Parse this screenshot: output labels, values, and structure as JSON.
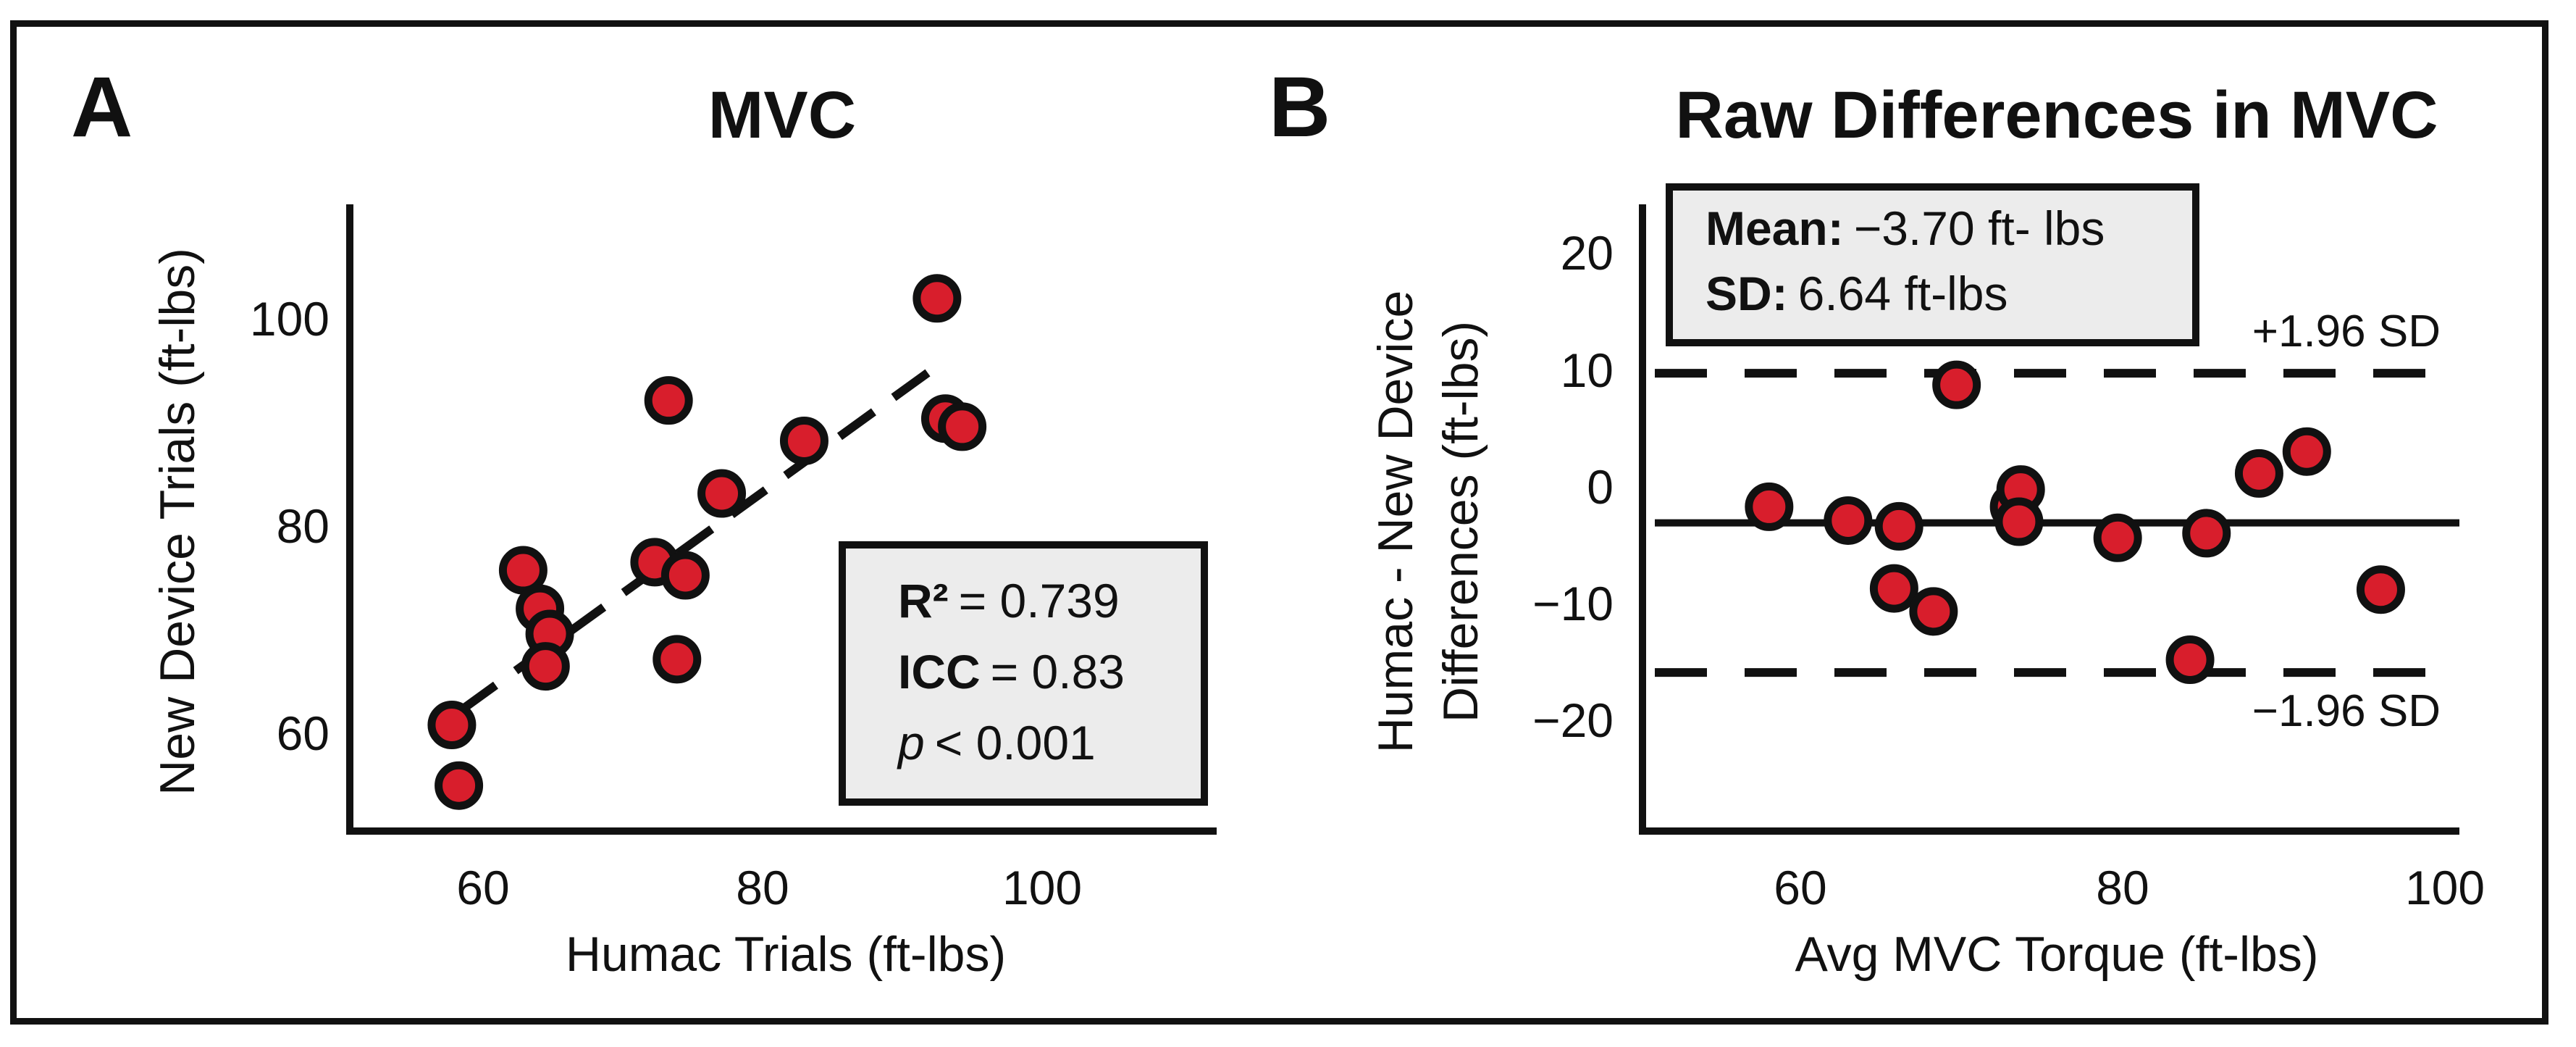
{
  "colors": {
    "point_fill": "#d81e2c",
    "point_stroke": "#111111",
    "box_fill": "#ececec",
    "ink": "#111111"
  },
  "panels": {
    "a": {
      "letter": "A",
      "stats": {
        "r2_label": "R²",
        "r2_value": "= 0.739",
        "icc_label": "ICC",
        "icc_value": "= 0.83",
        "p_label": "p",
        "p_value": "< 0.001"
      }
    },
    "b": {
      "letter": "B",
      "stats": {
        "mean_label": "Mean:",
        "mean_value": "−3.70 ft- lbs",
        "sd_label": "SD:",
        "sd_value": "6.64 ft-lbs"
      },
      "upper_label": "+1.96 SD",
      "lower_label": "−1.96 SD"
    }
  },
  "chart_data": [
    {
      "type": "scatter",
      "title": "MVC",
      "xlabel": "Humac Trials (ft-lbs)",
      "ylabel": "New Device Trials (ft-lbs)",
      "xlim": [
        50,
        112
      ],
      "ylim": [
        50,
        112
      ],
      "xticks": [
        60,
        80,
        100
      ],
      "yticks": [
        60,
        80,
        100
      ],
      "points": [
        {
          "x": 57.3,
          "y": 60.5
        },
        {
          "x": 57.8,
          "y": 54.5
        },
        {
          "x": 62.4,
          "y": 75.8
        },
        {
          "x": 63.6,
          "y": 72.0
        },
        {
          "x": 64.3,
          "y": 69.5
        },
        {
          "x": 64.0,
          "y": 66.3
        },
        {
          "x": 71.8,
          "y": 76.6
        },
        {
          "x": 72.8,
          "y": 92.6
        },
        {
          "x": 74.0,
          "y": 75.3
        },
        {
          "x": 73.4,
          "y": 67.0
        },
        {
          "x": 76.6,
          "y": 83.4
        },
        {
          "x": 82.5,
          "y": 88.6
        },
        {
          "x": 92.0,
          "y": 102.7
        },
        {
          "x": 92.6,
          "y": 90.8
        },
        {
          "x": 93.8,
          "y": 90.0
        }
      ],
      "fit_line": {
        "x": [
          58.0,
          92.5
        ],
        "y": [
          62.0,
          96.5
        ],
        "style": "dashed"
      }
    },
    {
      "type": "scatter",
      "title": "Raw Differences in MVC",
      "xlabel": "Avg MVC Torque (ft-lbs)",
      "ylabel_lines": [
        "Humac - New Device",
        "Differences (ft-lbs)"
      ],
      "xlim": [
        51.2,
        100
      ],
      "ylim": [
        -30.5,
        24
      ],
      "xticks": [
        60,
        80,
        100
      ],
      "yticks": [
        20,
        10,
        0,
        -10,
        -20
      ],
      "ytick_labels": [
        "20",
        "10",
        "0",
        "−10",
        "−20"
      ],
      "points": [
        {
          "x": 58.9,
          "y": -2.3
        },
        {
          "x": 63.7,
          "y": -3.5
        },
        {
          "x": 66.5,
          "y": -9.4
        },
        {
          "x": 66.8,
          "y": -4.0
        },
        {
          "x": 68.9,
          "y": -11.4
        },
        {
          "x": 70.3,
          "y": 8.3
        },
        {
          "x": 73.8,
          "y": -2.3
        },
        {
          "x": 74.2,
          "y": -0.8
        },
        {
          "x": 74.1,
          "y": -3.6
        },
        {
          "x": 80.1,
          "y": -5.0
        },
        {
          "x": 84.5,
          "y": -15.6
        },
        {
          "x": 85.5,
          "y": -4.6
        },
        {
          "x": 88.7,
          "y": 0.6
        },
        {
          "x": 91.6,
          "y": 2.5
        },
        {
          "x": 96.1,
          "y": -9.5
        }
      ],
      "mean_line": -3.7,
      "upper_limit": 9.31,
      "lower_limit": -16.71
    }
  ]
}
